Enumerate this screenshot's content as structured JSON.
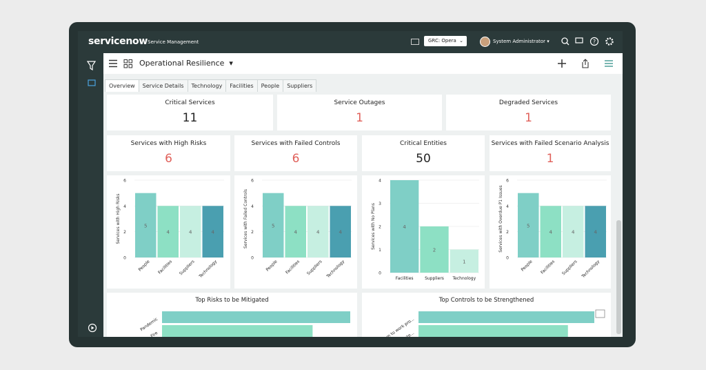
{
  "topbar": {
    "brand": "servicenow",
    "product": "Service Management",
    "scope": "GRC: Opera",
    "user": "System Administrator"
  },
  "header": {
    "title": "Operational Resilience"
  },
  "tabs": [
    "Overview",
    "Service Details",
    "Technology",
    "Facilities",
    "People",
    "Suppliers"
  ],
  "kpis_top": [
    {
      "label": "Critical Services",
      "value": 11,
      "color": "#222222"
    },
    {
      "label": "Service Outages",
      "value": 1,
      "color": "#e0605a"
    },
    {
      "label": "Degraded Services",
      "value": 1,
      "color": "#e0605a"
    }
  ],
  "kpis_mid": [
    {
      "label": "Services with High Risks",
      "value": 6,
      "color": "#e0605a"
    },
    {
      "label": "Services with Failed Controls",
      "value": 6,
      "color": "#e0605a"
    },
    {
      "label": "Critical Entities",
      "value": 50,
      "color": "#222222"
    },
    {
      "label": "Services with Failed Scenario Analysis",
      "value": 1,
      "color": "#e0605a"
    }
  ],
  "charts": [
    {
      "type": "bar",
      "ylabel": "Services with High Risks",
      "categories": [
        "People",
        "Facilities",
        "Suppliers",
        "Technology"
      ],
      "values": [
        5,
        4,
        4,
        4
      ],
      "colors": [
        "#7fcfc6",
        "#8de0c4",
        "#c6efe1",
        "#4a9fb0"
      ],
      "ylim": [
        0,
        6
      ],
      "yticks": [
        0,
        2,
        4,
        6
      ]
    },
    {
      "type": "bar",
      "ylabel": "Services with Failed Controls",
      "categories": [
        "People",
        "Facilities",
        "Suppliers",
        "Technology"
      ],
      "values": [
        5,
        4,
        4,
        4
      ],
      "colors": [
        "#7fcfc6",
        "#8de0c4",
        "#c6efe1",
        "#4a9fb0"
      ],
      "ylim": [
        0,
        6
      ],
      "yticks": [
        0,
        2,
        4,
        6
      ]
    },
    {
      "type": "bar",
      "ylabel": "Services with No Plans",
      "categories": [
        "Facilities",
        "Suppliers",
        "Technology"
      ],
      "values": [
        4,
        2,
        1
      ],
      "colors": [
        "#7fcfc6",
        "#8de0c4",
        "#c6efe1"
      ],
      "ylim": [
        0,
        4
      ],
      "yticks": [
        0,
        1,
        2,
        3,
        4
      ]
    },
    {
      "type": "bar",
      "ylabel": "Services with Overdue P1 Issues",
      "categories": [
        "People",
        "Facilities",
        "Suppliers",
        "Technology"
      ],
      "values": [
        5,
        4,
        4,
        4
      ],
      "colors": [
        "#7fcfc6",
        "#8de0c4",
        "#c6efe1",
        "#4a9fb0"
      ],
      "ylim": [
        0,
        6
      ],
      "yticks": [
        0,
        2,
        4,
        6
      ]
    }
  ],
  "hcharts": [
    {
      "type": "hbar",
      "title": "Top Risks to be Mitigated",
      "categories": [
        "Pandemic",
        "Fire"
      ],
      "values": [
        10,
        8
      ],
      "colors": [
        "#7fcfc6",
        "#8de0c4"
      ]
    },
    {
      "type": "hbar",
      "title": "Top Controls to be Strengthened",
      "categories": [
        "m to work pro...",
        "ndate..."
      ],
      "values": [
        10,
        8.5
      ],
      "colors": [
        "#7fcfc6",
        "#8de0c4"
      ]
    }
  ]
}
